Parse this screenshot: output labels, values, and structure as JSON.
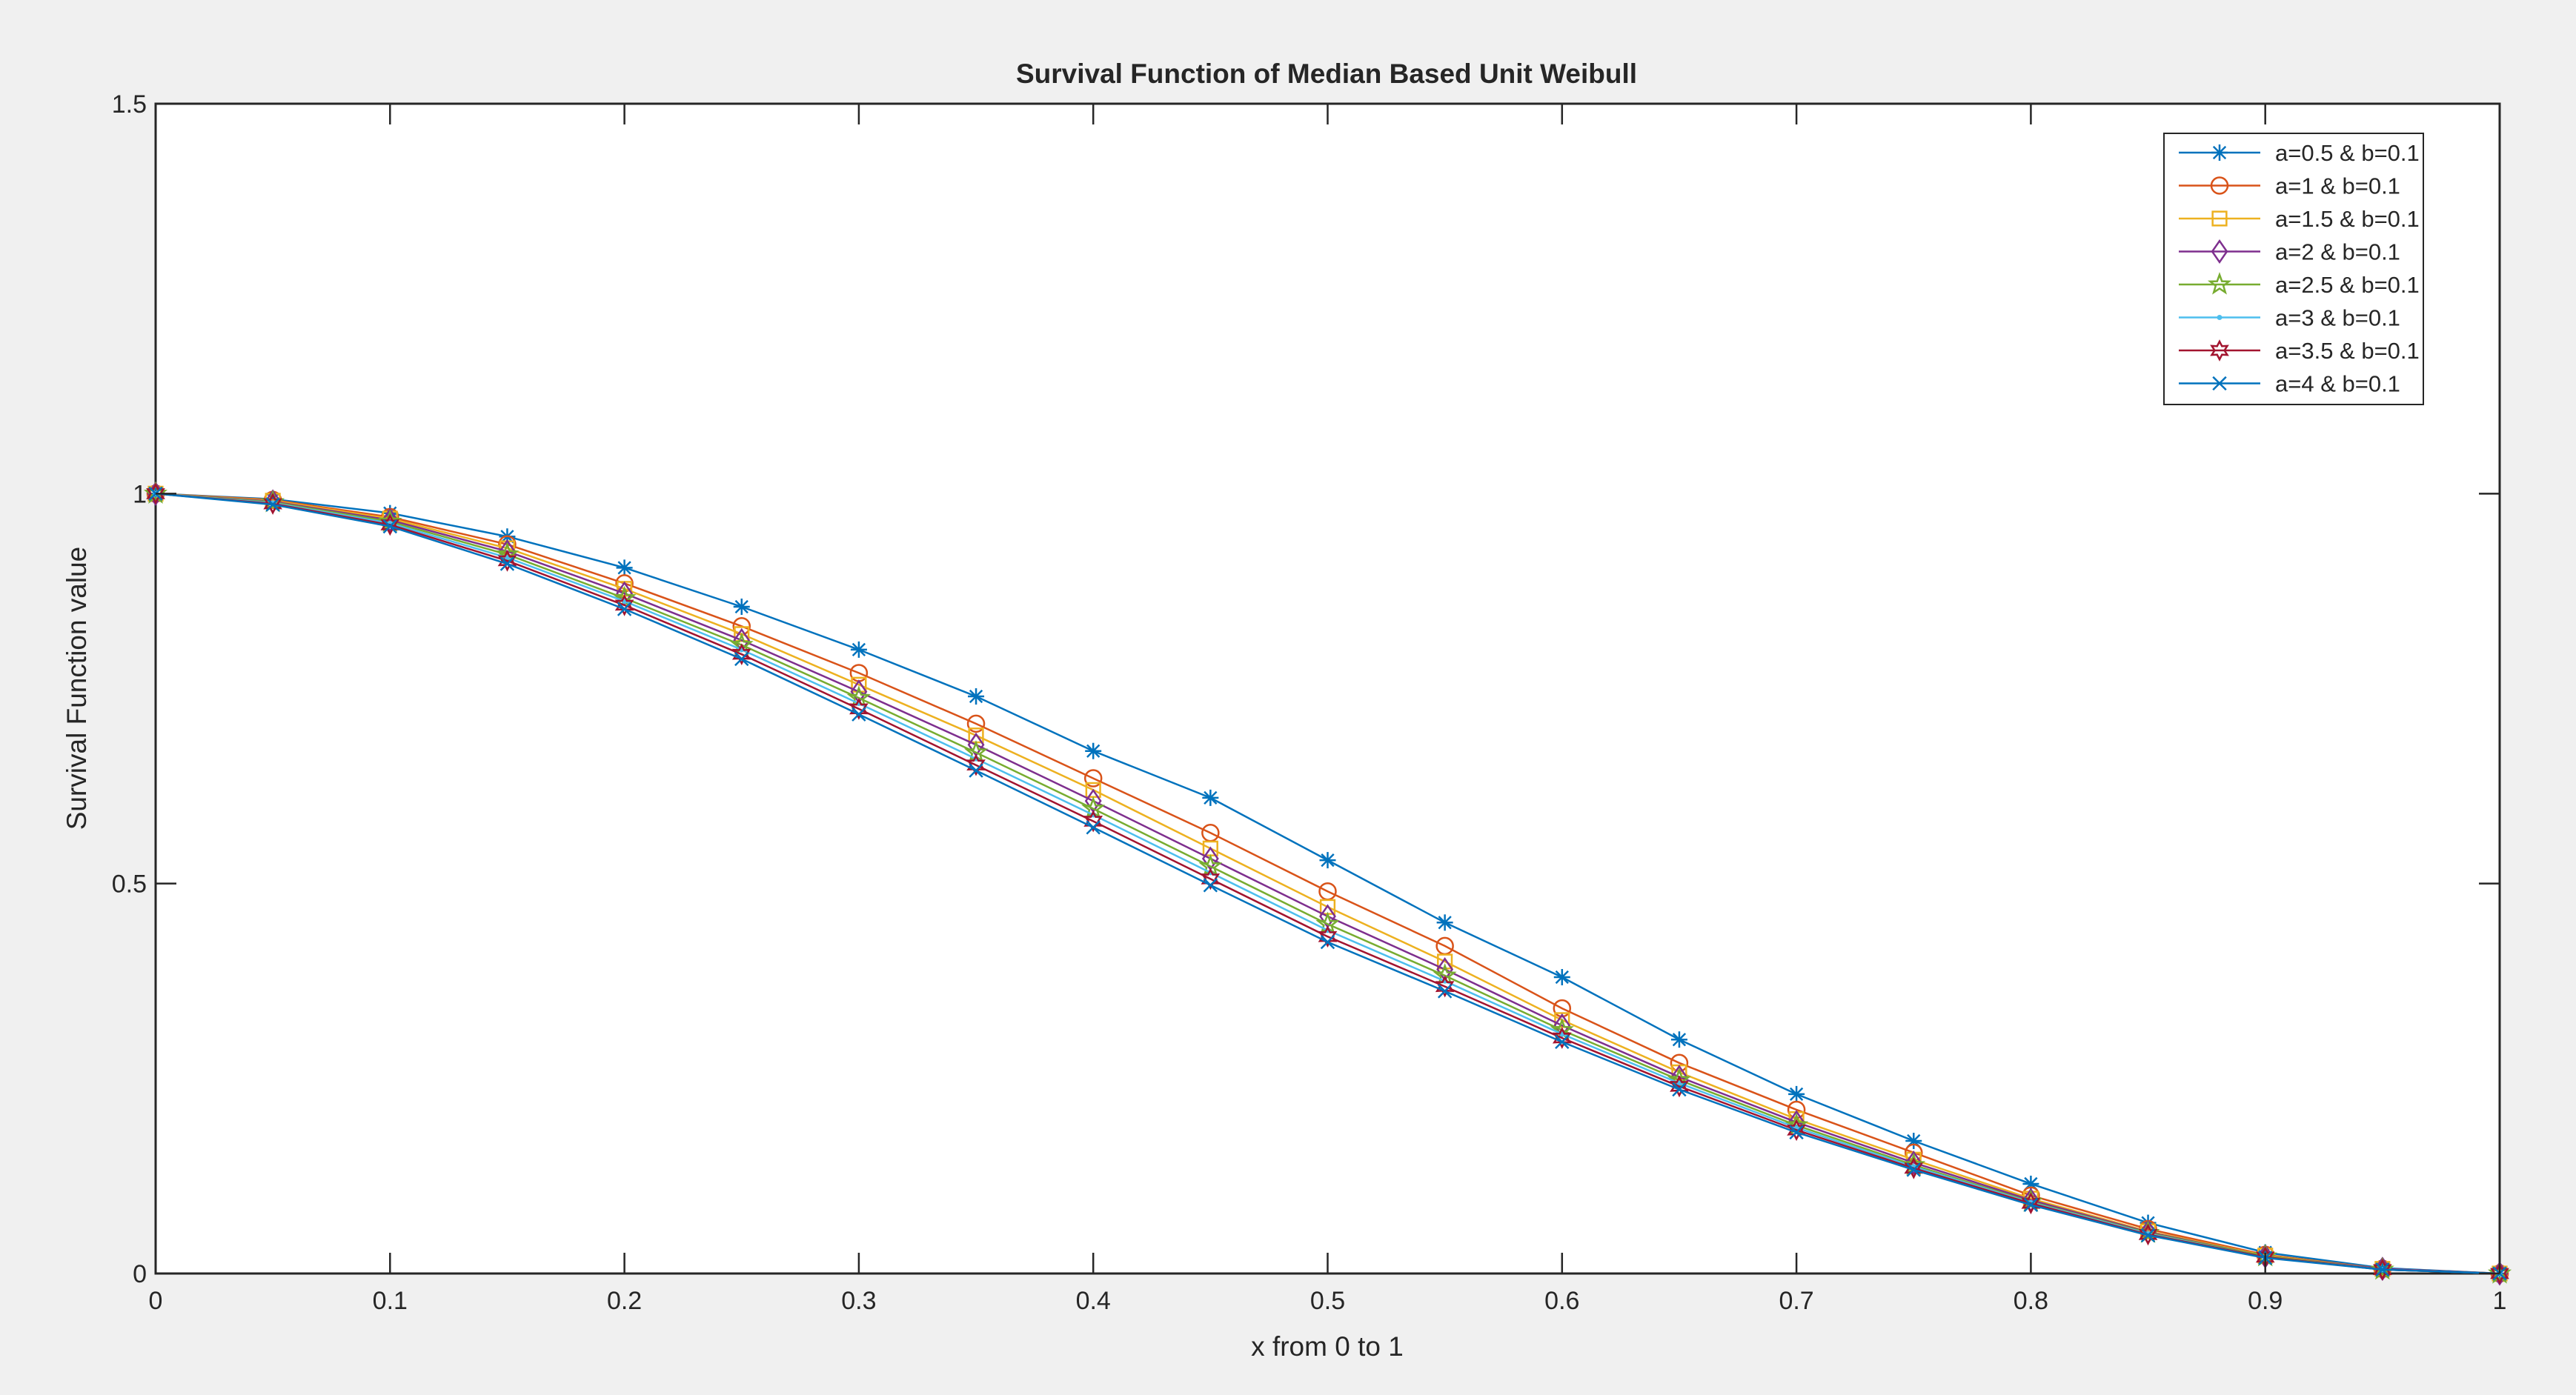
{
  "figure": {
    "background": "#f0f0f0",
    "frame": "#ffffff"
  },
  "chart_data": {
    "type": "line",
    "title": "Survival Function of Median  Based  Unit Weibull",
    "xlabel": "x from 0 to 1",
    "ylabel": "Survival Function value",
    "xlim": [
      0,
      1
    ],
    "ylim": [
      0,
      1.5
    ],
    "xticks": [
      "0",
      "0.1",
      "0.2",
      "0.3",
      "0.4",
      "0.5",
      "0.6",
      "0.7",
      "0.8",
      "0.9",
      "1"
    ],
    "yticks": [
      "0",
      "0.5",
      "1",
      "1.5"
    ],
    "grid": false,
    "legend_position": "top-right",
    "x": [
      0,
      0.05,
      0.1,
      0.15,
      0.2,
      0.25,
      0.3,
      0.35,
      0.4,
      0.45,
      0.5,
      0.55,
      0.6,
      0.65,
      0.7,
      0.75,
      0.8,
      0.85,
      0.9,
      0.95,
      1
    ],
    "series": [
      {
        "name": "a=0.5  &  b=0.1",
        "color": "#0072bd",
        "marker": "asterisk",
        "values": [
          1.0,
          0.993,
          0.975,
          0.945,
          0.905,
          0.855,
          0.8,
          0.74,
          0.67,
          0.61,
          0.53,
          0.45,
          0.38,
          0.3,
          0.23,
          0.17,
          0.115,
          0.065,
          0.027,
          0.007,
          0.0
        ]
      },
      {
        "name": "a=1  &  b=0.1",
        "color": "#d95319",
        "marker": "circle",
        "values": [
          1.0,
          0.992,
          0.97,
          0.935,
          0.885,
          0.83,
          0.77,
          0.705,
          0.635,
          0.565,
          0.49,
          0.42,
          0.34,
          0.27,
          0.21,
          0.155,
          0.1,
          0.057,
          0.024,
          0.006,
          0.0
        ]
      },
      {
        "name": "a=1.5  &  b=0.1",
        "color": "#edb120",
        "marker": "square",
        "values": [
          1.0,
          0.991,
          0.968,
          0.93,
          0.878,
          0.82,
          0.755,
          0.69,
          0.62,
          0.545,
          0.47,
          0.4,
          0.325,
          0.258,
          0.198,
          0.146,
          0.096,
          0.054,
          0.023,
          0.006,
          0.0
        ]
      },
      {
        "name": "a=2  &  b=0.1",
        "color": "#7e2f8e",
        "marker": "diamond",
        "values": [
          1.0,
          0.99,
          0.966,
          0.926,
          0.872,
          0.812,
          0.746,
          0.678,
          0.606,
          0.532,
          0.458,
          0.39,
          0.318,
          0.252,
          0.194,
          0.142,
          0.094,
          0.053,
          0.022,
          0.006,
          0.0
        ]
      },
      {
        "name": "a=2.5  &  b=0.1",
        "color": "#77ac30",
        "marker": "pentagram",
        "values": [
          1.0,
          0.989,
          0.964,
          0.922,
          0.866,
          0.806,
          0.738,
          0.668,
          0.596,
          0.522,
          0.448,
          0.382,
          0.312,
          0.248,
          0.19,
          0.139,
          0.092,
          0.052,
          0.022,
          0.005,
          0.0
        ]
      },
      {
        "name": "a=3 &  b=0.1",
        "color": "#4dbeee",
        "marker": "point",
        "values": [
          1.0,
          0.988,
          0.962,
          0.918,
          0.862,
          0.8,
          0.731,
          0.66,
          0.588,
          0.514,
          0.44,
          0.375,
          0.307,
          0.244,
          0.187,
          0.137,
          0.091,
          0.051,
          0.021,
          0.005,
          0.0
        ]
      },
      {
        "name": "a=3.5  &  b=0.1",
        "color": "#a2142f",
        "marker": "hexagram",
        "values": [
          1.0,
          0.987,
          0.96,
          0.914,
          0.857,
          0.794,
          0.724,
          0.652,
          0.58,
          0.506,
          0.432,
          0.368,
          0.302,
          0.24,
          0.184,
          0.135,
          0.09,
          0.05,
          0.021,
          0.005,
          0.0
        ]
      },
      {
        "name": "a=4 &   b=0.1",
        "color": "#0072bd",
        "marker": "x",
        "values": [
          1.0,
          0.986,
          0.958,
          0.91,
          0.852,
          0.788,
          0.717,
          0.645,
          0.572,
          0.498,
          0.425,
          0.362,
          0.297,
          0.236,
          0.181,
          0.133,
          0.088,
          0.049,
          0.02,
          0.005,
          0.0
        ]
      }
    ]
  }
}
